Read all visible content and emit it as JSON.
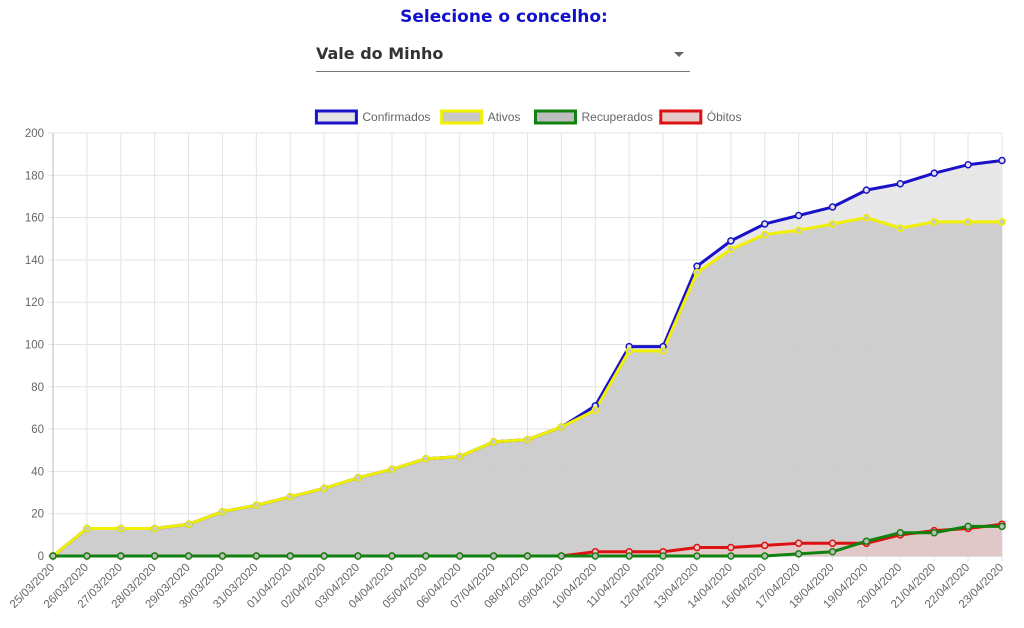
{
  "page": {
    "heading": "Selecione o concelho:",
    "selected": "Vale do Minho"
  },
  "chart_data": {
    "type": "area",
    "x": [
      "25/03/2020",
      "26/03/2020",
      "27/03/2020",
      "28/03/2020",
      "29/03/2020",
      "30/03/2020",
      "31/03/2020",
      "01/04/2020",
      "02/04/2020",
      "03/04/2020",
      "04/04/2020",
      "05/04/2020",
      "06/04/2020",
      "07/04/2020",
      "08/04/2020",
      "09/04/2020",
      "10/04/2020",
      "11/04/2020",
      "12/04/2020",
      "13/04/2020",
      "14/04/2020",
      "16/04/2020",
      "17/04/2020",
      "18/04/2020",
      "19/04/2020",
      "20/04/2020",
      "21/04/2020",
      "22/04/2020",
      "23/04/2020"
    ],
    "ylim": [
      0,
      200
    ],
    "yticks": [
      0,
      20,
      40,
      60,
      80,
      100,
      120,
      140,
      160,
      180,
      200
    ],
    "grid": true,
    "legend_position": "top",
    "series": [
      {
        "name": "Confirmados",
        "color": "#1a12c8",
        "fill": "#e4e4e4",
        "values": [
          0,
          13,
          13,
          13,
          15,
          21,
          24,
          28,
          32,
          37,
          41,
          46,
          47,
          54,
          55,
          61,
          71,
          99,
          99,
          137,
          149,
          157,
          161,
          165,
          173,
          176,
          181,
          185,
          187
        ]
      },
      {
        "name": "Ativos",
        "color": "#f0f000",
        "fill": "#c9c9c9",
        "values": [
          0,
          13,
          13,
          13,
          15,
          21,
          24,
          28,
          32,
          37,
          41,
          46,
          47,
          54,
          55,
          61,
          69,
          97,
          97,
          134,
          145,
          152,
          154,
          157,
          160,
          155,
          158,
          158,
          158
        ]
      },
      {
        "name": "Recuperados",
        "color": "#11820f",
        "fill": "#bdbdbd",
        "values": [
          0,
          0,
          0,
          0,
          0,
          0,
          0,
          0,
          0,
          0,
          0,
          0,
          0,
          0,
          0,
          0,
          0,
          0,
          0,
          0,
          0,
          0,
          1,
          2,
          7,
          11,
          11,
          14,
          14
        ]
      },
      {
        "name": "Óbitos",
        "color": "#dd1111",
        "fill": "#e6c9c9",
        "values": [
          0,
          0,
          0,
          0,
          0,
          0,
          0,
          0,
          0,
          0,
          0,
          0,
          0,
          0,
          0,
          0,
          2,
          2,
          2,
          4,
          4,
          5,
          6,
          6,
          6,
          10,
          12,
          13,
          15
        ]
      }
    ]
  }
}
